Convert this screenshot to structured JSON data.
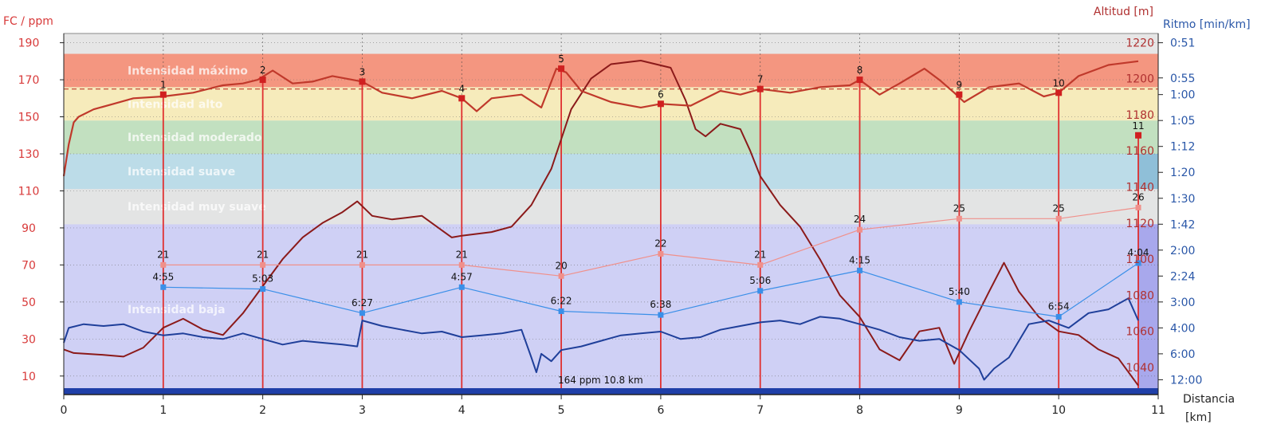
{
  "chart_data": {
    "type": "line",
    "title": "",
    "xlabel": [
      "Distancia",
      "[km]"
    ],
    "ylabel_left": "FC / ppm",
    "ylabel_right_altitude": "Altitud [m]",
    "ylabel_right_pace": "Ritmo [min/km]",
    "xlim": [
      0,
      11
    ],
    "ylim_hr": [
      0,
      195
    ],
    "ylim_alt": [
      1025,
      1225
    ],
    "x_ticks": [
      0,
      1,
      2,
      3,
      4,
      5,
      6,
      7,
      8,
      9,
      10,
      11
    ],
    "hr_ticks": [
      10,
      30,
      50,
      70,
      90,
      110,
      130,
      150,
      170,
      190
    ],
    "alt_ticks": [
      1040,
      1060,
      1080,
      1100,
      1120,
      1140,
      1160,
      1180,
      1200,
      1220
    ],
    "pace_ticks": [
      {
        "label": "0:51",
        "hr": 190
      },
      {
        "label": "0:55",
        "hr": 171
      },
      {
        "label": "1:00",
        "hr": 162
      },
      {
        "label": "1:05",
        "hr": 148
      },
      {
        "label": "1:12",
        "hr": 134
      },
      {
        "label": "1:20",
        "hr": 120
      },
      {
        "label": "1:30",
        "hr": 106
      },
      {
        "label": "1:42",
        "hr": 92
      },
      {
        "label": "2:00",
        "hr": 78
      },
      {
        "label": "2:24",
        "hr": 64
      },
      {
        "label": "3:00",
        "hr": 50
      },
      {
        "label": "4:00",
        "hr": 36
      },
      {
        "label": "6:00",
        "hr": 22
      },
      {
        "label": "12:00",
        "hr": 8
      }
    ],
    "zones": [
      {
        "name": "Intensidad baja",
        "from": 0,
        "to": 92,
        "color": "#cfd0f5"
      },
      {
        "name": "Intensidad muy suave",
        "from": 92,
        "to": 111,
        "color": "#e3e4e4"
      },
      {
        "name": "Intensidad suave",
        "from": 111,
        "to": 130,
        "color": "#bcdce8"
      },
      {
        "name": "Intensidad moderado",
        "from": 130,
        "to": 148,
        "color": "#c2e0c0"
      },
      {
        "name": "Intensidad alto",
        "from": 148,
        "to": 166,
        "color": "#f6ebbb"
      },
      {
        "name": "Intensidad máximo",
        "from": 166,
        "to": 184,
        "color": "#f49680"
      }
    ],
    "km_markers": [
      {
        "x": 1,
        "label": "1",
        "hr": 162
      },
      {
        "x": 2,
        "label": "2",
        "hr": 170
      },
      {
        "x": 3,
        "label": "3",
        "hr": 169
      },
      {
        "x": 4,
        "label": "4",
        "hr": 160
      },
      {
        "x": 5,
        "label": "5",
        "hr": 176
      },
      {
        "x": 6,
        "label": "6",
        "hr": 157
      },
      {
        "x": 7,
        "label": "7",
        "hr": 165
      },
      {
        "x": 8,
        "label": "8",
        "hr": 170
      },
      {
        "x": 9,
        "label": "9",
        "hr": 162
      },
      {
        "x": 10,
        "label": "10",
        "hr": 163
      },
      {
        "x": 10.8,
        "label": "11",
        "hr": 140
      }
    ],
    "series": [
      {
        "name": "hr",
        "color": "#c0392b",
        "x": [
          0,
          0.05,
          0.1,
          0.15,
          0.3,
          0.5,
          0.7,
          1.0,
          1.3,
          1.6,
          1.8,
          1.95,
          2.1,
          2.3,
          2.5,
          2.7,
          2.9,
          3.0,
          3.2,
          3.5,
          3.8,
          4.0,
          4.15,
          4.3,
          4.6,
          4.8,
          4.95,
          5.05,
          5.2,
          5.5,
          5.8,
          6.0,
          6.3,
          6.6,
          6.8,
          7.0,
          7.3,
          7.6,
          7.9,
          8.0,
          8.2,
          8.4,
          8.65,
          8.8,
          8.95,
          9.05,
          9.3,
          9.6,
          9.85,
          10.0,
          10.2,
          10.5,
          10.8
        ],
        "y": [
          118,
          135,
          147,
          150,
          154,
          157,
          160,
          161,
          163,
          167,
          168,
          170,
          175,
          168,
          169,
          172,
          170,
          169,
          163,
          160,
          164,
          160,
          153,
          160,
          162,
          155,
          176,
          174,
          164,
          158,
          155,
          157,
          156,
          164,
          162,
          165,
          163,
          166,
          167,
          170,
          162,
          168,
          176,
          170,
          163,
          158,
          166,
          168,
          161,
          163,
          172,
          178,
          180
        ]
      },
      {
        "name": "altitude",
        "color": "#8b1a1a",
        "x": [
          0,
          0.1,
          0.4,
          0.6,
          0.8,
          1.0,
          1.2,
          1.4,
          1.6,
          1.8,
          2.0,
          2.2,
          2.4,
          2.6,
          2.8,
          2.95,
          3.1,
          3.3,
          3.6,
          3.8,
          3.9,
          4.0,
          4.3,
          4.5,
          4.7,
          4.9,
          5.1,
          5.3,
          5.5,
          5.8,
          6.1,
          6.25,
          6.35,
          6.45,
          6.6,
          6.8,
          6.9,
          7.0,
          7.2,
          7.4,
          7.6,
          7.8,
          8.0,
          8.2,
          8.4,
          8.6,
          8.8,
          8.95,
          9.1,
          9.3,
          9.45,
          9.6,
          9.8,
          10.0,
          10.2,
          10.4,
          10.6,
          10.8
        ],
        "y": [
          1050,
          1048,
          1047,
          1046,
          1051,
          1062,
          1067,
          1061,
          1058,
          1070,
          1085,
          1100,
          1112,
          1120,
          1126,
          1132,
          1124,
          1122,
          1124,
          1116,
          1112,
          1113,
          1115,
          1118,
          1130,
          1150,
          1183,
          1200,
          1208,
          1210,
          1206,
          1188,
          1172,
          1168,
          1175,
          1172,
          1160,
          1146,
          1130,
          1118,
          1100,
          1080,
          1068,
          1050,
          1044,
          1060,
          1062,
          1042,
          1060,
          1082,
          1098,
          1082,
          1068,
          1060,
          1058,
          1050,
          1045,
          1030
        ]
      },
      {
        "name": "pace",
        "color": "#1f3f9a",
        "x": [
          0,
          0.05,
          0.2,
          0.4,
          0.6,
          0.8,
          1.0,
          1.2,
          1.4,
          1.6,
          1.8,
          2.0,
          2.2,
          2.4,
          2.6,
          2.8,
          2.95,
          3.0,
          3.2,
          3.4,
          3.6,
          3.8,
          4.0,
          4.2,
          4.4,
          4.6,
          4.7,
          4.75,
          4.8,
          4.9,
          5.0,
          5.2,
          5.4,
          5.6,
          5.8,
          6.0,
          6.2,
          6.4,
          6.6,
          6.8,
          7.0,
          7.2,
          7.4,
          7.6,
          7.8,
          8.0,
          8.2,
          8.4,
          8.6,
          8.8,
          9.0,
          9.2,
          9.25,
          9.35,
          9.5,
          9.7,
          9.9,
          10.1,
          10.3,
          10.5,
          10.7,
          10.8
        ],
        "y": [
          28,
          36,
          38,
          37,
          38,
          34,
          32,
          33,
          31,
          30,
          33,
          30,
          27,
          29,
          28,
          27,
          26,
          40,
          37,
          35,
          33,
          34,
          31,
          32,
          33,
          35,
          20,
          12,
          22,
          18,
          24,
          26,
          29,
          32,
          33,
          34,
          30,
          31,
          35,
          37,
          39,
          40,
          38,
          42,
          41,
          38,
          35,
          31,
          29,
          30,
          24,
          14,
          8,
          14,
          20,
          38,
          40,
          36,
          44,
          46,
          52,
          40
        ]
      }
    ],
    "lap_pace": {
      "x": [
        1,
        2,
        3,
        4,
        5,
        6,
        7,
        8,
        9,
        10,
        10.8
      ],
      "hr_pos": [
        58,
        57,
        44,
        58,
        45,
        43,
        56,
        67,
        50,
        42,
        71
      ],
      "labels": [
        "4:55",
        "5:03",
        "6:27",
        "4:57",
        "6:22",
        "6:38",
        "5:06",
        "4:15",
        "5:40",
        "6:54",
        "4:04"
      ],
      "color": "#3a8fe8"
    },
    "lap_avg": {
      "x": [
        1,
        2,
        3,
        4,
        5,
        6,
        7,
        8,
        9,
        10,
        10.8
      ],
      "hr_pos": [
        70,
        70,
        70,
        70,
        64,
        76,
        70,
        89,
        95,
        95,
        101
      ],
      "labels": [
        "21",
        "21",
        "21",
        "21",
        "20",
        "22",
        "21",
        "24",
        "25",
        "25",
        "26"
      ],
      "color": "#f0908b"
    },
    "dash_line_hr": 165,
    "bottom_annotation": "164 ppm 10.8 km"
  }
}
